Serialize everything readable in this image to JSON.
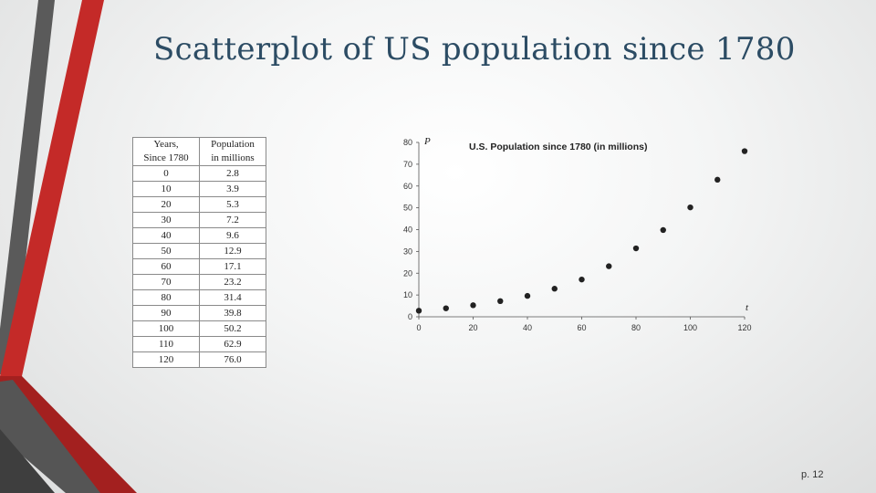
{
  "slide": {
    "title": "Scatterplot of US population since 1780",
    "page": "p. 12"
  },
  "table": {
    "headers": [
      [
        "Years,",
        "Since 1780"
      ],
      [
        "Population",
        "in millions"
      ]
    ],
    "rows": [
      [
        "0",
        "2.8"
      ],
      [
        "10",
        "3.9"
      ],
      [
        "20",
        "5.3"
      ],
      [
        "30",
        "7.2"
      ],
      [
        "40",
        "9.6"
      ],
      [
        "50",
        "12.9"
      ],
      [
        "60",
        "17.1"
      ],
      [
        "70",
        "23.2"
      ],
      [
        "80",
        "31.4"
      ],
      [
        "90",
        "39.8"
      ],
      [
        "100",
        "50.2"
      ],
      [
        "110",
        "62.9"
      ],
      [
        "120",
        "76.0"
      ]
    ]
  },
  "chart_data": {
    "type": "scatter",
    "title": "U.S. Population since 1780 (in millions)",
    "xlabel": "t",
    "ylabel": "P",
    "x": [
      0,
      10,
      20,
      30,
      40,
      50,
      60,
      70,
      80,
      90,
      100,
      110,
      120
    ],
    "y": [
      2.8,
      3.9,
      5.3,
      7.2,
      9.6,
      12.9,
      17.1,
      23.2,
      31.4,
      39.8,
      50.2,
      62.9,
      76.0
    ],
    "xlim": [
      0,
      120
    ],
    "ylim": [
      0,
      80
    ],
    "xticks": [
      0,
      20,
      40,
      60,
      80,
      100,
      120
    ],
    "yticks": [
      0,
      10,
      20,
      30,
      40,
      50,
      60,
      70,
      80
    ],
    "grid": false,
    "point_color": "#222222"
  },
  "colors": {
    "title": "#2c4c64",
    "accent_red": "#c42a28",
    "accent_gray": "#555555"
  }
}
